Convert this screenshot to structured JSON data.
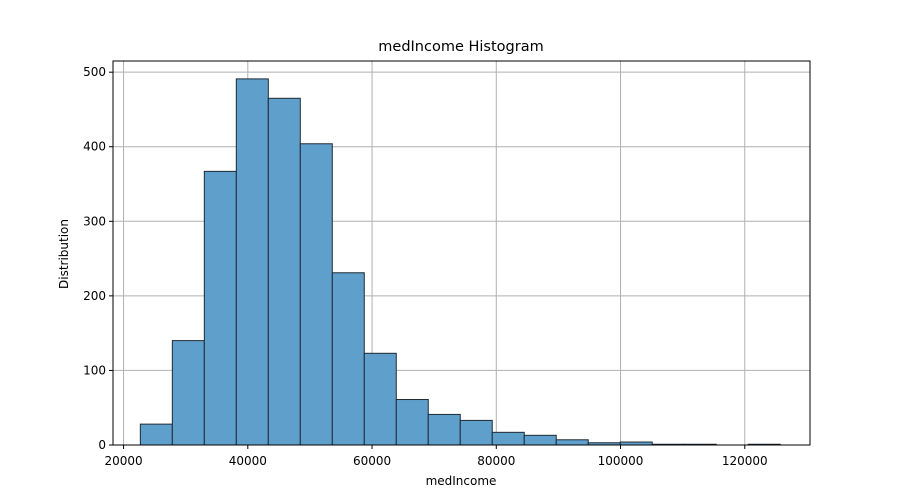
{
  "chart_data": {
    "type": "bar",
    "title": "medIncome Histogram",
    "xlabel": "medIncome",
    "ylabel": "Distribution",
    "xlim": [
      18300,
      130500
    ],
    "ylim": [
      0,
      515
    ],
    "x_ticks": [
      20000,
      40000,
      60000,
      80000,
      100000,
      120000
    ],
    "x_tick_labels": [
      "20000",
      "40000",
      "60000",
      "80000",
      "100000",
      "120000"
    ],
    "y_ticks": [
      0,
      100,
      200,
      300,
      400,
      500
    ],
    "y_tick_labels": [
      "0",
      "100",
      "200",
      "300",
      "400",
      "500"
    ],
    "grid": true,
    "bar_color": "#5f9fcc",
    "edge_color": "#1f2a33",
    "bins": [
      {
        "x0": 22700,
        "x1": 27850,
        "count": 28
      },
      {
        "x0": 27850,
        "x1": 33000,
        "count": 140
      },
      {
        "x0": 33000,
        "x1": 38150,
        "count": 367
      },
      {
        "x0": 38150,
        "x1": 43300,
        "count": 491
      },
      {
        "x0": 43300,
        "x1": 48450,
        "count": 465
      },
      {
        "x0": 48450,
        "x1": 53600,
        "count": 404
      },
      {
        "x0": 53600,
        "x1": 58750,
        "count": 231
      },
      {
        "x0": 58750,
        "x1": 63900,
        "count": 123
      },
      {
        "x0": 63900,
        "x1": 69050,
        "count": 61
      },
      {
        "x0": 69050,
        "x1": 74200,
        "count": 41
      },
      {
        "x0": 74200,
        "x1": 79350,
        "count": 33
      },
      {
        "x0": 79350,
        "x1": 84500,
        "count": 17
      },
      {
        "x0": 84500,
        "x1": 89650,
        "count": 13
      },
      {
        "x0": 89650,
        "x1": 94800,
        "count": 7
      },
      {
        "x0": 94800,
        "x1": 99950,
        "count": 3
      },
      {
        "x0": 99950,
        "x1": 105100,
        "count": 4
      },
      {
        "x0": 105100,
        "x1": 110250,
        "count": 1
      },
      {
        "x0": 110250,
        "x1": 115400,
        "count": 1
      },
      {
        "x0": 115400,
        "x1": 120550,
        "count": 0
      },
      {
        "x0": 120550,
        "x1": 125700,
        "count": 1
      }
    ]
  }
}
